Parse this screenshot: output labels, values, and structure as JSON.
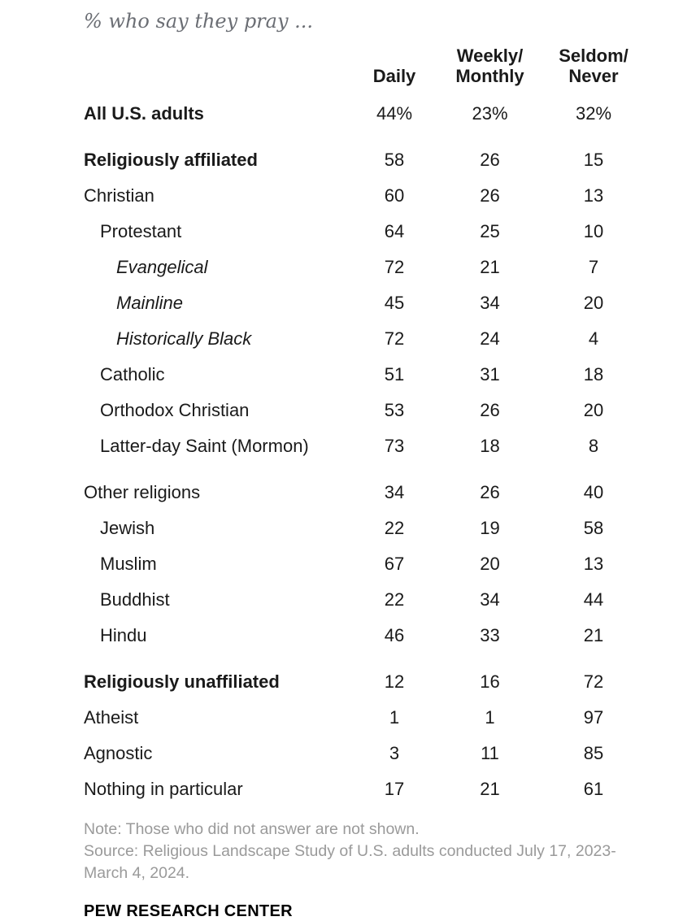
{
  "title": "% who say they pray ...",
  "colors": {
    "text": "#1a1a1a",
    "title_gray": "#6b6e74",
    "note_gray": "#9a9a9a",
    "background": "#ffffff"
  },
  "chart_data": {
    "type": "table",
    "title": "% who say they pray ...",
    "columns": [
      "Daily",
      "Weekly/\nMonthly",
      "Seldom/\nNever"
    ],
    "rows": [
      {
        "label": "All U.S. adults",
        "style": "bold",
        "indent": 0,
        "values": [
          44,
          23,
          32
        ],
        "show_percent": true
      },
      {
        "label": "Religiously affiliated",
        "style": "bold",
        "indent": 0,
        "values": [
          58,
          26,
          15
        ],
        "gap_before": true
      },
      {
        "label": "Christian",
        "style": "normal",
        "indent": 0,
        "values": [
          60,
          26,
          13
        ]
      },
      {
        "label": "Protestant",
        "style": "normal",
        "indent": 1,
        "values": [
          64,
          25,
          10
        ]
      },
      {
        "label": "Evangelical",
        "style": "italic",
        "indent": 2,
        "values": [
          72,
          21,
          7
        ]
      },
      {
        "label": "Mainline",
        "style": "italic",
        "indent": 2,
        "values": [
          45,
          34,
          20
        ]
      },
      {
        "label": "Historically Black",
        "style": "italic",
        "indent": 2,
        "values": [
          72,
          24,
          4
        ]
      },
      {
        "label": "Catholic",
        "style": "normal",
        "indent": 1,
        "values": [
          51,
          31,
          18
        ]
      },
      {
        "label": "Orthodox Christian",
        "style": "normal",
        "indent": 1,
        "values": [
          53,
          26,
          20
        ]
      },
      {
        "label": "Latter-day Saint (Mormon)",
        "style": "normal",
        "indent": 1,
        "values": [
          73,
          18,
          8
        ]
      },
      {
        "label": "Other religions",
        "style": "normal",
        "indent": 0,
        "values": [
          34,
          26,
          40
        ],
        "gap_before": true
      },
      {
        "label": "Jewish",
        "style": "normal",
        "indent": 1,
        "values": [
          22,
          19,
          58
        ]
      },
      {
        "label": "Muslim",
        "style": "normal",
        "indent": 1,
        "values": [
          67,
          20,
          13
        ]
      },
      {
        "label": "Buddhist",
        "style": "normal",
        "indent": 1,
        "values": [
          22,
          34,
          44
        ]
      },
      {
        "label": "Hindu",
        "style": "normal",
        "indent": 1,
        "values": [
          46,
          33,
          21
        ]
      },
      {
        "label": "Religiously unaffiliated",
        "style": "bold",
        "indent": 0,
        "values": [
          12,
          16,
          72
        ],
        "gap_before": true
      },
      {
        "label": "Atheist",
        "style": "normal",
        "indent": 0,
        "values": [
          1,
          1,
          97
        ]
      },
      {
        "label": "Agnostic",
        "style": "normal",
        "indent": 0,
        "values": [
          3,
          11,
          85
        ]
      },
      {
        "label": "Nothing in particular",
        "style": "normal",
        "indent": 0,
        "values": [
          17,
          21,
          61
        ]
      }
    ]
  },
  "footer": {
    "note": "Note: Those who did not answer are not shown.",
    "source": "Source: Religious Landscape Study of U.S. adults conducted July 17, 2023-March 4, 2024.",
    "brand": "PEW RESEARCH CENTER"
  }
}
